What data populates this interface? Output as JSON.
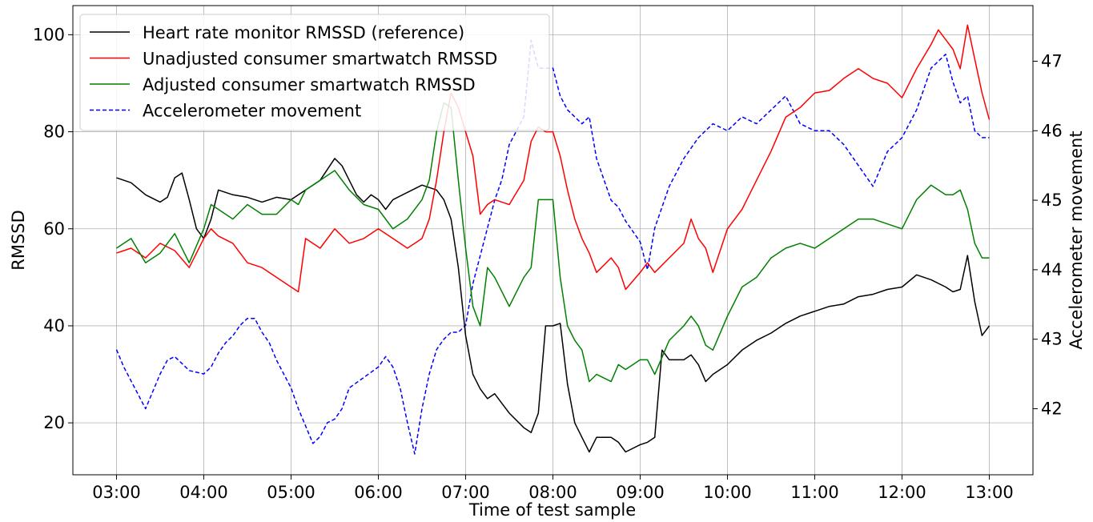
{
  "chart_data": {
    "type": "line",
    "xlabel": "Time of test sample",
    "ylabel": "RMSSD",
    "y2label": "Accelerometer movement",
    "x_ticks": [
      "03:00",
      "04:00",
      "05:00",
      "06:00",
      "07:00",
      "08:00",
      "09:00",
      "10:00",
      "11:00",
      "12:00",
      "13:00"
    ],
    "xlim": [
      "02:30",
      "13:30"
    ],
    "ylim": [
      9.3,
      106
    ],
    "yticks": [
      20,
      40,
      60,
      80,
      100
    ],
    "y2lim": [
      41.05,
      47.8
    ],
    "y2ticks": [
      42,
      43,
      44,
      45,
      46,
      47
    ],
    "grid": true,
    "legend_position": "top-left",
    "series": [
      {
        "name": "Heart rate monitor RMSSD (reference)",
        "axis": "left",
        "color": "#000000",
        "style": "solid",
        "x": [
          "03:00",
          "03:10",
          "03:20",
          "03:30",
          "03:35",
          "03:40",
          "03:45",
          "03:50",
          "03:55",
          "04:00",
          "04:05",
          "04:10",
          "04:20",
          "04:30",
          "04:40",
          "04:50",
          "05:00",
          "05:10",
          "05:20",
          "05:30",
          "05:35",
          "05:40",
          "05:45",
          "05:50",
          "05:55",
          "06:00",
          "06:05",
          "06:10",
          "06:20",
          "06:30",
          "06:40",
          "06:45",
          "06:50",
          "06:55",
          "07:00",
          "07:05",
          "07:10",
          "07:15",
          "07:20",
          "07:25",
          "07:30",
          "07:40",
          "07:45",
          "07:50",
          "07:55",
          "08:00",
          "08:05",
          "08:10",
          "08:15",
          "08:20",
          "08:25",
          "08:30",
          "08:40",
          "08:45",
          "08:50",
          "09:00",
          "09:05",
          "09:10",
          "09:15",
          "09:20",
          "09:30",
          "09:35",
          "09:40",
          "09:45",
          "09:50",
          "10:00",
          "10:10",
          "10:20",
          "10:30",
          "10:40",
          "10:50",
          "11:00",
          "11:10",
          "11:20",
          "11:30",
          "11:40",
          "11:50",
          "12:00",
          "12:10",
          "12:20",
          "12:30",
          "12:35",
          "12:40",
          "12:45",
          "12:50",
          "12:55",
          "13:00"
        ],
        "values": [
          70.5,
          69.5,
          67,
          65.5,
          66.5,
          70.5,
          71.5,
          66,
          60,
          58,
          62,
          68,
          67,
          66.5,
          65.5,
          66.5,
          66,
          68,
          70,
          74.5,
          73,
          70,
          67,
          65.5,
          67,
          66,
          64,
          66,
          67.5,
          69,
          68,
          66,
          62,
          52,
          38,
          30,
          27,
          25,
          26,
          24,
          22,
          19,
          18,
          22,
          40,
          40,
          40.5,
          28,
          20,
          17,
          14,
          17,
          17,
          16,
          14,
          15.5,
          16,
          17,
          35,
          33,
          33,
          34,
          32,
          28.5,
          30,
          32,
          35,
          37,
          38.5,
          40.5,
          42,
          43,
          44,
          44.5,
          46,
          46.5,
          47.5,
          48,
          50.5,
          49.5,
          48,
          47,
          47.5,
          54.5,
          45,
          38,
          40
        ]
      },
      {
        "name": "Unadjusted consumer smartwatch RMSSD",
        "axis": "left",
        "color": "#ff0000",
        "style": "solid",
        "x": [
          "03:00",
          "03:10",
          "03:20",
          "03:30",
          "03:40",
          "03:50",
          "04:00",
          "04:05",
          "04:10",
          "04:20",
          "04:30",
          "04:40",
          "04:50",
          "05:00",
          "05:05",
          "05:10",
          "05:20",
          "05:30",
          "05:40",
          "05:50",
          "06:00",
          "06:10",
          "06:20",
          "06:30",
          "06:35",
          "06:40",
          "06:45",
          "06:50",
          "06:55",
          "07:00",
          "07:05",
          "07:10",
          "07:15",
          "07:20",
          "07:30",
          "07:40",
          "07:45",
          "07:50",
          "07:55",
          "08:00",
          "08:05",
          "08:10",
          "08:15",
          "08:20",
          "08:25",
          "08:30",
          "08:40",
          "08:45",
          "08:50",
          "09:00",
          "09:05",
          "09:10",
          "09:20",
          "09:30",
          "09:35",
          "09:40",
          "09:45",
          "09:50",
          "10:00",
          "10:10",
          "10:20",
          "10:30",
          "10:40",
          "10:50",
          "11:00",
          "11:10",
          "11:20",
          "11:30",
          "11:40",
          "11:50",
          "12:00",
          "12:10",
          "12:20",
          "12:25",
          "12:30",
          "12:35",
          "12:40",
          "12:45",
          "12:50",
          "12:55",
          "13:00"
        ],
        "values": [
          55,
          56,
          54,
          57,
          55.5,
          52,
          58,
          60,
          58.5,
          57,
          53,
          52,
          50,
          48,
          47,
          58,
          56,
          60,
          57,
          58,
          60,
          58,
          56,
          58,
          62,
          70,
          80,
          88,
          85,
          80,
          75,
          63,
          65,
          66,
          65,
          70,
          78,
          81,
          80,
          80,
          75,
          68,
          62,
          58,
          55,
          51,
          54,
          52,
          47.5,
          51,
          53,
          51,
          54,
          57,
          62,
          58,
          56,
          51,
          60,
          64,
          70,
          76,
          83,
          85,
          88,
          88.5,
          91,
          93,
          91,
          90,
          87,
          93,
          98,
          101,
          99,
          97,
          93,
          102,
          95,
          88,
          82.5
        ]
      },
      {
        "name": "Adjusted consumer smartwatch RMSSD",
        "axis": "left",
        "color": "#008000",
        "style": "solid",
        "x": [
          "03:00",
          "03:10",
          "03:20",
          "03:30",
          "03:40",
          "03:50",
          "04:00",
          "04:05",
          "04:10",
          "04:20",
          "04:30",
          "04:40",
          "04:50",
          "05:00",
          "05:05",
          "05:10",
          "05:20",
          "05:30",
          "05:40",
          "05:50",
          "06:00",
          "06:10",
          "06:20",
          "06:30",
          "06:35",
          "06:40",
          "06:45",
          "06:50",
          "06:55",
          "07:00",
          "07:05",
          "07:10",
          "07:15",
          "07:20",
          "07:30",
          "07:40",
          "07:45",
          "07:50",
          "07:55",
          "08:00",
          "08:05",
          "08:10",
          "08:15",
          "08:20",
          "08:25",
          "08:30",
          "08:40",
          "08:45",
          "08:50",
          "09:00",
          "09:05",
          "09:10",
          "09:20",
          "09:30",
          "09:35",
          "09:40",
          "09:45",
          "09:50",
          "10:00",
          "10:10",
          "10:20",
          "10:30",
          "10:40",
          "10:50",
          "11:00",
          "11:10",
          "11:20",
          "11:30",
          "11:40",
          "11:50",
          "12:00",
          "12:10",
          "12:20",
          "12:25",
          "12:30",
          "12:35",
          "12:40",
          "12:45",
          "12:50",
          "12:55",
          "13:00"
        ],
        "values": [
          56,
          58,
          53,
          55,
          59,
          53,
          60,
          65,
          64,
          62,
          65,
          63,
          63,
          66,
          65,
          68,
          70,
          72,
          68,
          65,
          64,
          60,
          62,
          66,
          70,
          80,
          86,
          85,
          70,
          56,
          44,
          40,
          52,
          50,
          44,
          50,
          52,
          66,
          66,
          66,
          50,
          40,
          37,
          35,
          28.5,
          30,
          28.5,
          32,
          31,
          33,
          33,
          30,
          37,
          40,
          42,
          40,
          36,
          35,
          42,
          48,
          50,
          54,
          56,
          57,
          56,
          58,
          60,
          62,
          62,
          61,
          60,
          66,
          69,
          68,
          67,
          67,
          68,
          64,
          57,
          54,
          54
        ]
      },
      {
        "name": "Accelerometer movement",
        "axis": "right",
        "color": "#0000ff",
        "style": "dashed",
        "x": [
          "03:00",
          "03:05",
          "03:10",
          "03:15",
          "03:20",
          "03:30",
          "03:35",
          "03:40",
          "03:45",
          "03:50",
          "04:00",
          "04:05",
          "04:10",
          "04:15",
          "04:20",
          "04:25",
          "04:30",
          "04:35",
          "04:40",
          "04:45",
          "04:50",
          "05:00",
          "05:05",
          "05:10",
          "05:15",
          "05:20",
          "05:25",
          "05:30",
          "05:35",
          "05:40",
          "05:50",
          "06:00",
          "06:05",
          "06:10",
          "06:15",
          "06:20",
          "06:25",
          "06:30",
          "06:35",
          "06:40",
          "06:45",
          "06:50",
          "06:55",
          "07:00",
          "07:05",
          "07:10",
          "07:20",
          "07:25",
          "07:30",
          "07:40",
          "07:45",
          "07:50",
          "07:55",
          "08:00",
          "08:05",
          "08:10",
          "08:20",
          "08:25",
          "08:30",
          "08:40",
          "08:45",
          "08:50",
          "09:00",
          "09:05",
          "09:10",
          "09:20",
          "09:30",
          "09:40",
          "09:50",
          "10:00",
          "10:10",
          "10:20",
          "10:30",
          "10:40",
          "10:50",
          "11:00",
          "11:10",
          "11:20",
          "11:30",
          "11:40",
          "11:50",
          "12:00",
          "12:10",
          "12:20",
          "12:30",
          "12:35",
          "12:40",
          "12:45",
          "12:50",
          "12:55",
          "13:00"
        ],
        "values": [
          42.85,
          42.6,
          42.4,
          42.2,
          42.0,
          42.5,
          42.7,
          42.75,
          42.65,
          42.55,
          42.5,
          42.6,
          42.8,
          42.95,
          43.05,
          43.2,
          43.3,
          43.3,
          43.1,
          42.95,
          42.7,
          42.3,
          42.0,
          41.75,
          41.5,
          41.6,
          41.8,
          41.85,
          42.0,
          42.3,
          42.45,
          42.6,
          42.75,
          42.6,
          42.3,
          41.8,
          41.35,
          42.0,
          42.5,
          42.85,
          43.0,
          43.1,
          43.1,
          43.2,
          43.8,
          44.2,
          45.0,
          45.3,
          45.8,
          46.2,
          47.3,
          46.9,
          46.9,
          46.9,
          46.5,
          46.3,
          46.1,
          46.2,
          45.6,
          45.0,
          44.9,
          44.7,
          44.4,
          44.0,
          44.6,
          45.2,
          45.6,
          45.9,
          46.1,
          46.0,
          46.2,
          46.1,
          46.3,
          46.5,
          46.1,
          46.0,
          46.0,
          45.8,
          45.5,
          45.2,
          45.7,
          45.9,
          46.3,
          46.9,
          47.1,
          46.7,
          46.4,
          46.5,
          46.0,
          45.9,
          45.9
        ]
      }
    ]
  }
}
